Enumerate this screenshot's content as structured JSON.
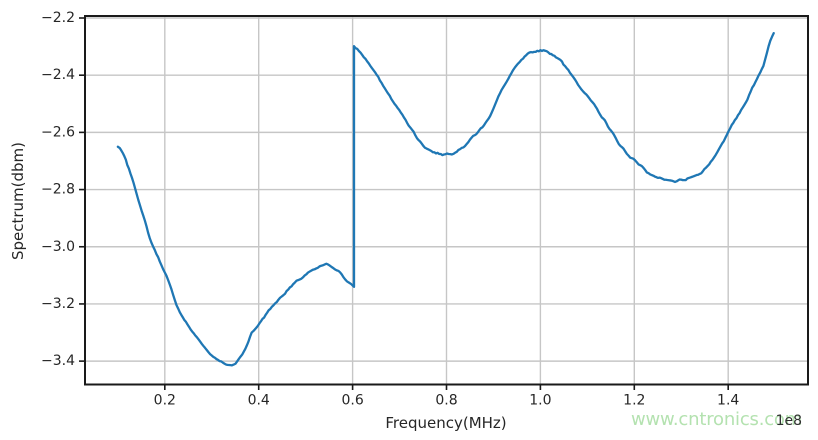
{
  "watermark": {
    "text": "www.cntronics.com",
    "color": "#b4e2b0"
  },
  "chart_data": {
    "type": "line",
    "title": "",
    "xlabel": "Frequency(MHz)",
    "ylabel": "Spectrum(dbm)",
    "x_offset_text": "1e8",
    "xlim": [
      0.03,
      1.57
    ],
    "ylim": [
      -3.48,
      -2.2
    ],
    "xticks": [
      0.2,
      0.4,
      0.6,
      0.8,
      1.0,
      1.2,
      1.4
    ],
    "xtick_labels": [
      "0.2",
      "0.4",
      "0.6",
      "0.8",
      "1.0",
      "1.2",
      "1.4"
    ],
    "yticks": [
      -2.2,
      -2.4,
      -2.6,
      -2.8,
      -3.0,
      -3.2,
      -3.4
    ],
    "ytick_labels": [
      "−2.2",
      "−2.4",
      "−2.6",
      "−2.8",
      "−3.0",
      "−3.2",
      "−3.4"
    ],
    "grid": true,
    "legend": "none",
    "line_color": "#1f77b4",
    "grid_color": "#c6c6c6",
    "spine_color": "#1a1a1a",
    "tick_label_color": "#262626",
    "noise_amplitude": 0.006,
    "series": [
      {
        "name": "spectrum",
        "segments": [
          {
            "x": [
              0.1,
              0.108,
              0.12,
              0.14,
              0.168,
              0.2,
              0.232,
              0.268,
              0.3,
              0.32,
              0.343,
              0.365,
              0.385,
              0.428,
              0.477,
              0.526,
              0.548,
              0.57,
              0.591,
              0.603
            ],
            "y": [
              -2.65,
              -2.668,
              -2.715,
              -2.815,
              -2.97,
              -3.09,
              -3.228,
              -3.316,
              -3.378,
              -3.4,
              -3.416,
              -3.375,
              -3.302,
              -3.21,
              -3.128,
              -3.075,
              -3.064,
              -3.085,
              -3.124,
              -3.14
            ]
          },
          {
            "x": [
              0.603,
              0.631,
              0.658,
              0.686,
              0.716,
              0.744,
              0.771,
              0.801,
              0.829,
              0.857,
              0.886,
              0.914,
              0.942,
              0.97,
              1.0,
              1.03,
              1.049,
              1.091,
              1.134,
              1.177,
              1.202,
              1.241,
              1.277,
              1.313,
              1.356,
              1.401,
              1.441,
              1.475,
              1.497
            ],
            "y": [
              -2.3,
              -2.351,
              -2.418,
              -2.492,
              -2.563,
              -2.633,
              -2.668,
              -2.675,
              -2.658,
              -2.615,
              -2.56,
              -2.465,
              -2.385,
              -2.333,
              -2.313,
              -2.33,
              -2.365,
              -2.454,
              -2.552,
              -2.658,
              -2.7,
              -2.753,
              -2.77,
              -2.763,
              -2.718,
              -2.598,
              -2.482,
              -2.365,
              -2.253
            ]
          }
        ]
      }
    ],
    "discontinuity_x": 0.603
  }
}
